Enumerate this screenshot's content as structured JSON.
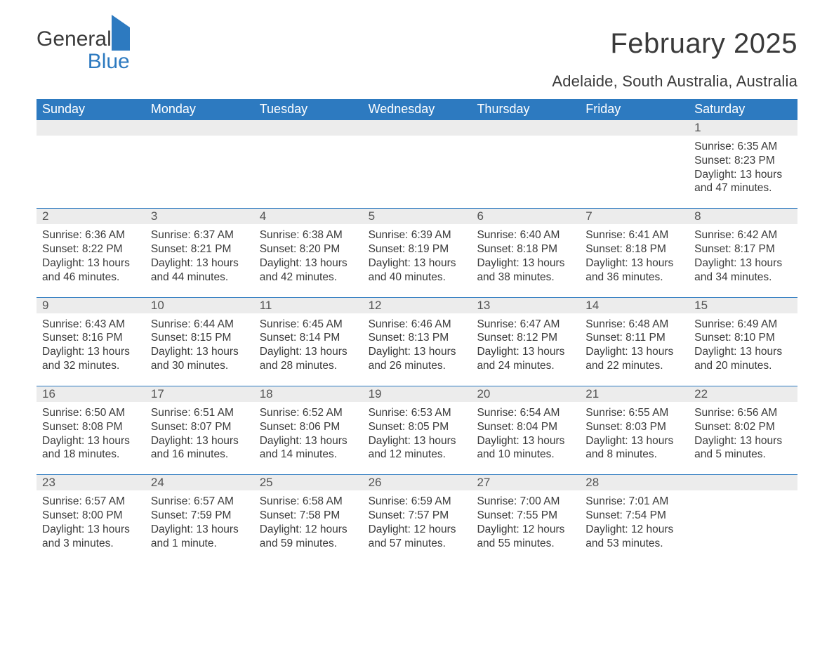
{
  "logo": {
    "line1": "General",
    "line2": "Blue"
  },
  "title": "February 2025",
  "location": "Adelaide, South Australia, Australia",
  "colors": {
    "header_bg": "#2d7ac0",
    "header_text": "#ffffff",
    "daynum_bg": "#ececec",
    "text": "#3a3a3a",
    "rule": "#2d7ac0",
    "page_bg": "#ffffff"
  },
  "font": {
    "family": "Arial",
    "title_size_pt": 30,
    "location_size_pt": 16,
    "body_size_pt": 11.5,
    "dayhead_size_pt": 13
  },
  "day_headers": [
    "Sunday",
    "Monday",
    "Tuesday",
    "Wednesday",
    "Thursday",
    "Friday",
    "Saturday"
  ],
  "weeks": [
    [
      {
        "n": "",
        "sunrise": "",
        "sunset": "",
        "daylight": ""
      },
      {
        "n": "",
        "sunrise": "",
        "sunset": "",
        "daylight": ""
      },
      {
        "n": "",
        "sunrise": "",
        "sunset": "",
        "daylight": ""
      },
      {
        "n": "",
        "sunrise": "",
        "sunset": "",
        "daylight": ""
      },
      {
        "n": "",
        "sunrise": "",
        "sunset": "",
        "daylight": ""
      },
      {
        "n": "",
        "sunrise": "",
        "sunset": "",
        "daylight": ""
      },
      {
        "n": "1",
        "sunrise": "Sunrise: 6:35 AM",
        "sunset": "Sunset: 8:23 PM",
        "daylight": "Daylight: 13 hours and 47 minutes."
      }
    ],
    [
      {
        "n": "2",
        "sunrise": "Sunrise: 6:36 AM",
        "sunset": "Sunset: 8:22 PM",
        "daylight": "Daylight: 13 hours and 46 minutes."
      },
      {
        "n": "3",
        "sunrise": "Sunrise: 6:37 AM",
        "sunset": "Sunset: 8:21 PM",
        "daylight": "Daylight: 13 hours and 44 minutes."
      },
      {
        "n": "4",
        "sunrise": "Sunrise: 6:38 AM",
        "sunset": "Sunset: 8:20 PM",
        "daylight": "Daylight: 13 hours and 42 minutes."
      },
      {
        "n": "5",
        "sunrise": "Sunrise: 6:39 AM",
        "sunset": "Sunset: 8:19 PM",
        "daylight": "Daylight: 13 hours and 40 minutes."
      },
      {
        "n": "6",
        "sunrise": "Sunrise: 6:40 AM",
        "sunset": "Sunset: 8:18 PM",
        "daylight": "Daylight: 13 hours and 38 minutes."
      },
      {
        "n": "7",
        "sunrise": "Sunrise: 6:41 AM",
        "sunset": "Sunset: 8:18 PM",
        "daylight": "Daylight: 13 hours and 36 minutes."
      },
      {
        "n": "8",
        "sunrise": "Sunrise: 6:42 AM",
        "sunset": "Sunset: 8:17 PM",
        "daylight": "Daylight: 13 hours and 34 minutes."
      }
    ],
    [
      {
        "n": "9",
        "sunrise": "Sunrise: 6:43 AM",
        "sunset": "Sunset: 8:16 PM",
        "daylight": "Daylight: 13 hours and 32 minutes."
      },
      {
        "n": "10",
        "sunrise": "Sunrise: 6:44 AM",
        "sunset": "Sunset: 8:15 PM",
        "daylight": "Daylight: 13 hours and 30 minutes."
      },
      {
        "n": "11",
        "sunrise": "Sunrise: 6:45 AM",
        "sunset": "Sunset: 8:14 PM",
        "daylight": "Daylight: 13 hours and 28 minutes."
      },
      {
        "n": "12",
        "sunrise": "Sunrise: 6:46 AM",
        "sunset": "Sunset: 8:13 PM",
        "daylight": "Daylight: 13 hours and 26 minutes."
      },
      {
        "n": "13",
        "sunrise": "Sunrise: 6:47 AM",
        "sunset": "Sunset: 8:12 PM",
        "daylight": "Daylight: 13 hours and 24 minutes."
      },
      {
        "n": "14",
        "sunrise": "Sunrise: 6:48 AM",
        "sunset": "Sunset: 8:11 PM",
        "daylight": "Daylight: 13 hours and 22 minutes."
      },
      {
        "n": "15",
        "sunrise": "Sunrise: 6:49 AM",
        "sunset": "Sunset: 8:10 PM",
        "daylight": "Daylight: 13 hours and 20 minutes."
      }
    ],
    [
      {
        "n": "16",
        "sunrise": "Sunrise: 6:50 AM",
        "sunset": "Sunset: 8:08 PM",
        "daylight": "Daylight: 13 hours and 18 minutes."
      },
      {
        "n": "17",
        "sunrise": "Sunrise: 6:51 AM",
        "sunset": "Sunset: 8:07 PM",
        "daylight": "Daylight: 13 hours and 16 minutes."
      },
      {
        "n": "18",
        "sunrise": "Sunrise: 6:52 AM",
        "sunset": "Sunset: 8:06 PM",
        "daylight": "Daylight: 13 hours and 14 minutes."
      },
      {
        "n": "19",
        "sunrise": "Sunrise: 6:53 AM",
        "sunset": "Sunset: 8:05 PM",
        "daylight": "Daylight: 13 hours and 12 minutes."
      },
      {
        "n": "20",
        "sunrise": "Sunrise: 6:54 AM",
        "sunset": "Sunset: 8:04 PM",
        "daylight": "Daylight: 13 hours and 10 minutes."
      },
      {
        "n": "21",
        "sunrise": "Sunrise: 6:55 AM",
        "sunset": "Sunset: 8:03 PM",
        "daylight": "Daylight: 13 hours and 8 minutes."
      },
      {
        "n": "22",
        "sunrise": "Sunrise: 6:56 AM",
        "sunset": "Sunset: 8:02 PM",
        "daylight": "Daylight: 13 hours and 5 minutes."
      }
    ],
    [
      {
        "n": "23",
        "sunrise": "Sunrise: 6:57 AM",
        "sunset": "Sunset: 8:00 PM",
        "daylight": "Daylight: 13 hours and 3 minutes."
      },
      {
        "n": "24",
        "sunrise": "Sunrise: 6:57 AM",
        "sunset": "Sunset: 7:59 PM",
        "daylight": "Daylight: 13 hours and 1 minute."
      },
      {
        "n": "25",
        "sunrise": "Sunrise: 6:58 AM",
        "sunset": "Sunset: 7:58 PM",
        "daylight": "Daylight: 12 hours and 59 minutes."
      },
      {
        "n": "26",
        "sunrise": "Sunrise: 6:59 AM",
        "sunset": "Sunset: 7:57 PM",
        "daylight": "Daylight: 12 hours and 57 minutes."
      },
      {
        "n": "27",
        "sunrise": "Sunrise: 7:00 AM",
        "sunset": "Sunset: 7:55 PM",
        "daylight": "Daylight: 12 hours and 55 minutes."
      },
      {
        "n": "28",
        "sunrise": "Sunrise: 7:01 AM",
        "sunset": "Sunset: 7:54 PM",
        "daylight": "Daylight: 12 hours and 53 minutes."
      },
      {
        "n": "",
        "sunrise": "",
        "sunset": "",
        "daylight": ""
      }
    ]
  ]
}
